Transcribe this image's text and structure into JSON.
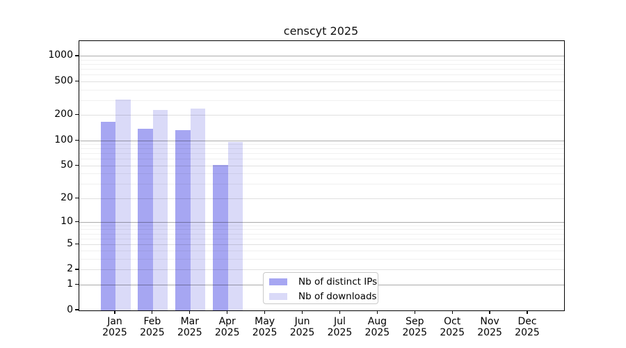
{
  "title": "censcyt 2025",
  "chart_data": {
    "type": "bar",
    "title": "censcyt 2025",
    "scale": "log1p",
    "grid": "both",
    "legend_position": "lower-center",
    "year": "2025",
    "categories": [
      "Jan",
      "Feb",
      "Mar",
      "Apr",
      "May",
      "Jun",
      "Jul",
      "Aug",
      "Sep",
      "Oct",
      "Nov",
      "Dec"
    ],
    "series": [
      {
        "name": "Nb of distinct IPs",
        "color": "#a6a6f2",
        "values": [
          167,
          140,
          134,
          51,
          0,
          0,
          0,
          0,
          0,
          0,
          0,
          0
        ]
      },
      {
        "name": "Nb of downloads",
        "color": "#dadaf8",
        "values": [
          306,
          233,
          240,
          97,
          0,
          0,
          0,
          0,
          0,
          0,
          0,
          0
        ]
      }
    ],
    "yticks": [
      0,
      1,
      2,
      5,
      10,
      20,
      50,
      100,
      200,
      500,
      1000
    ],
    "ylim": [
      0,
      1500
    ],
    "xlabel": "",
    "ylabel": ""
  },
  "colors": {
    "background": "#ffffff",
    "spine": "#000000",
    "grid_major": "#aaaaaa",
    "grid_mid": "#dddddd",
    "grid_minor": "#efefef",
    "bar_distinct_ips": "#a6a6f2",
    "bar_downloads": "#dadaf8",
    "text": "#000000"
  }
}
